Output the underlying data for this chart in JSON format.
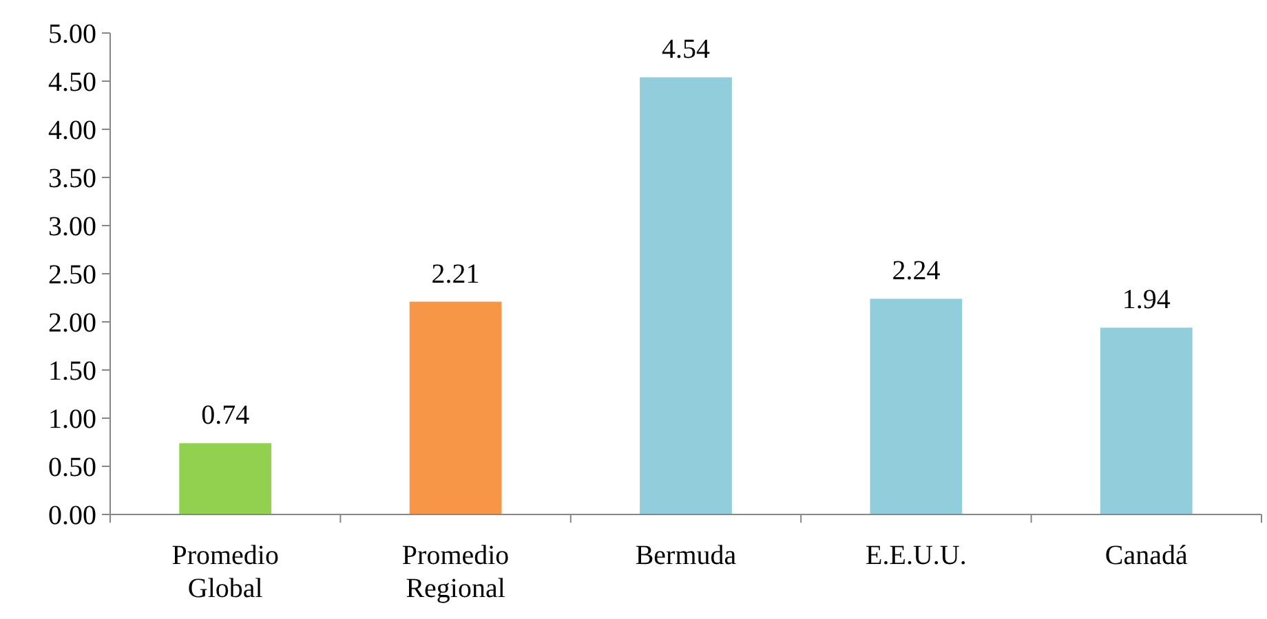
{
  "chart_data": {
    "type": "bar",
    "categories": [
      "Promedio Global",
      "Promedio Regional",
      "Bermuda",
      "E.E.U.U.",
      "Canadá"
    ],
    "values": [
      0.74,
      2.21,
      4.54,
      2.24,
      1.94
    ],
    "colors": [
      "#92d050",
      "#f79646",
      "#92cddc",
      "#92cddc",
      "#92cddc"
    ],
    "ylim": [
      0,
      5
    ],
    "yticks": [
      {
        "value": 0,
        "label": "0.00"
      },
      {
        "value": 0.5,
        "label": "0.50"
      },
      {
        "value": 1,
        "label": "1.00"
      },
      {
        "value": 1.5,
        "label": "1.50"
      },
      {
        "value": 2,
        "label": "2.00"
      },
      {
        "value": 2.5,
        "label": "2.50"
      },
      {
        "value": 3,
        "label": "3.00"
      },
      {
        "value": 3.5,
        "label": "3.50"
      },
      {
        "value": 4,
        "label": "4.00"
      },
      {
        "value": 4.5,
        "label": "4.50"
      },
      {
        "value": 5,
        "label": "5.00"
      }
    ],
    "value_labels": [
      "0.74",
      "2.21",
      "4.54",
      "2.24",
      "1.94"
    ],
    "grid": false
  }
}
